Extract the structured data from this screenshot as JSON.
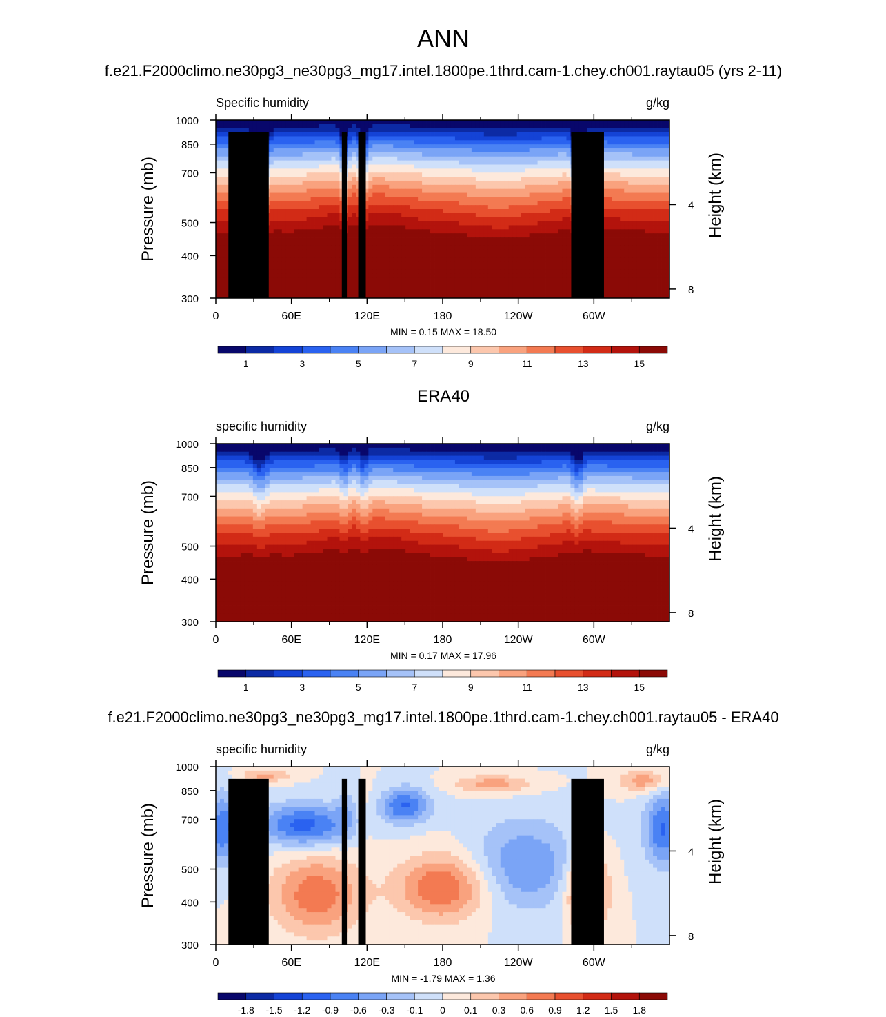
{
  "page": {
    "title": "ANN"
  },
  "chart_data": [
    {
      "type": "heatmap",
      "title": "f.e21.F2000climo.ne30pg3_ne30pg3_mg17.intel.1800pe.1thrd.cam-1.chey.ch001.raytau05 (yrs 2-11)",
      "left_label": "Specific humidity",
      "right_label": "g/kg",
      "ylabel": "Pressure (mb)",
      "ylabel_right": "Height (km)",
      "x_ticks": [
        "0",
        "60E",
        "120E",
        "180",
        "120W",
        "60W"
      ],
      "y_ticks": [
        "300",
        "400",
        "500",
        "700",
        "850",
        "1000"
      ],
      "y_right_ticks": [
        "8",
        "4"
      ],
      "stats": {
        "min_label": "MIN =",
        "min": "0.15",
        "max_label": "MAX =",
        "max": "18.50"
      },
      "colorbar": [
        "1",
        "3",
        "5",
        "7",
        "9",
        "11",
        "13",
        "15"
      ],
      "field": "absolute"
    },
    {
      "type": "heatmap",
      "title": "ERA40",
      "left_label": "specific humidity",
      "right_label": "g/kg",
      "ylabel": "Pressure (mb)",
      "ylabel_right": "Height (km)",
      "x_ticks": [
        "0",
        "60E",
        "120E",
        "180",
        "120W",
        "60W"
      ],
      "y_ticks": [
        "300",
        "400",
        "500",
        "700",
        "850",
        "1000"
      ],
      "y_right_ticks": [
        "8",
        "4"
      ],
      "stats": {
        "min_label": "MIN =",
        "min": "0.17",
        "max_label": "MAX =",
        "max": "17.96"
      },
      "colorbar": [
        "1",
        "3",
        "5",
        "7",
        "9",
        "11",
        "13",
        "15"
      ],
      "field": "absolute"
    },
    {
      "type": "heatmap",
      "title": "f.e21.F2000climo.ne30pg3_ne30pg3_mg17.intel.1800pe.1thrd.cam-1.chey.ch001.raytau05 - ERA40",
      "left_label": "specific humidity",
      "right_label": "g/kg",
      "ylabel": "Pressure (mb)",
      "ylabel_right": "Height (km)",
      "x_ticks": [
        "0",
        "60E",
        "120E",
        "180",
        "120W",
        "60W"
      ],
      "y_ticks": [
        "300",
        "400",
        "500",
        "700",
        "850",
        "1000"
      ],
      "y_right_ticks": [
        "8",
        "4"
      ],
      "stats": {
        "min_label": "MIN =",
        "min": "-1.79",
        "max_label": "MAX =",
        "max": "1.36"
      },
      "colorbar": [
        "-1.8",
        "-1.5",
        "-1.2",
        "-0.9",
        "-0.6",
        "-0.3",
        "-0.1",
        "0",
        "0.1",
        "0.3",
        "0.6",
        "0.9",
        "1.2",
        "1.5",
        "1.8"
      ],
      "field": "difference"
    }
  ],
  "colors": {
    "palette": [
      "#08076b",
      "#0c2aa4",
      "#1443d6",
      "#2a62f0",
      "#4a82f4",
      "#7aa4f6",
      "#a5c2f8",
      "#cfe0fa",
      "#fde9dc",
      "#fcc7ad",
      "#f9a27e",
      "#f37a52",
      "#e8502f",
      "#d22b16",
      "#b3130c",
      "#8b0a06"
    ]
  }
}
